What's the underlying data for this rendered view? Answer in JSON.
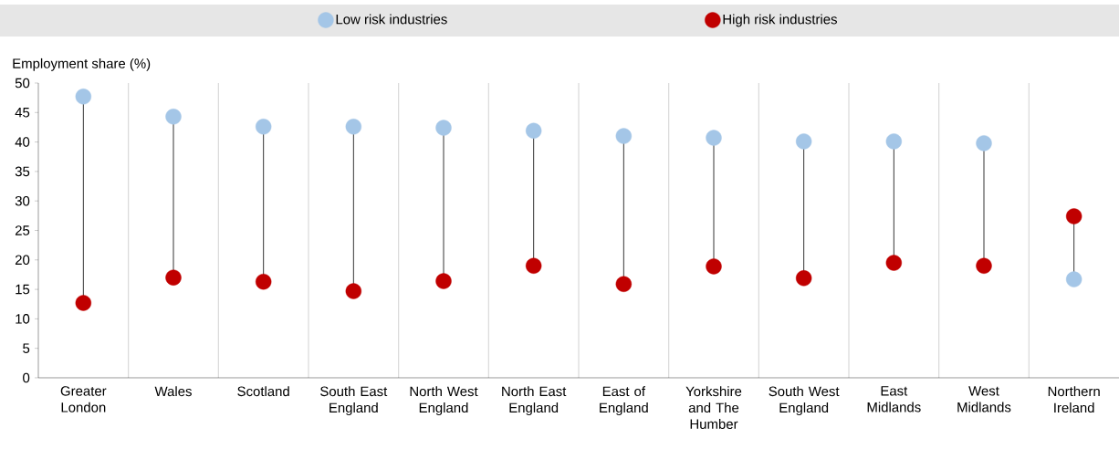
{
  "chart_data": {
    "type": "scatter",
    "ylabel": "Employment share (%)",
    "categories": [
      "Greater London",
      "Wales",
      "Scotland",
      "South East England",
      "North West England",
      "North East England",
      "East of England",
      "Yorkshire and The Humber",
      "South West England",
      "East Midlands",
      "West Midlands",
      "Northern Ireland"
    ],
    "series": [
      {
        "name": "Low risk industries",
        "color": "#a4c6e7",
        "values": [
          47.7,
          44.3,
          42.6,
          42.6,
          42.4,
          41.9,
          41.0,
          40.7,
          40.1,
          40.1,
          39.8,
          16.7
        ]
      },
      {
        "name": "High risk industries",
        "color": "#c00000",
        "values": [
          12.7,
          17.0,
          16.3,
          14.7,
          16.4,
          19.0,
          15.9,
          18.9,
          16.9,
          19.5,
          19.0,
          27.4
        ]
      }
    ],
    "ylim": [
      0,
      50
    ],
    "yticks": [
      0,
      5,
      10,
      15,
      20,
      25,
      30,
      35,
      40,
      45,
      50
    ],
    "grid": "x",
    "legend": "top",
    "marker": "circle"
  }
}
